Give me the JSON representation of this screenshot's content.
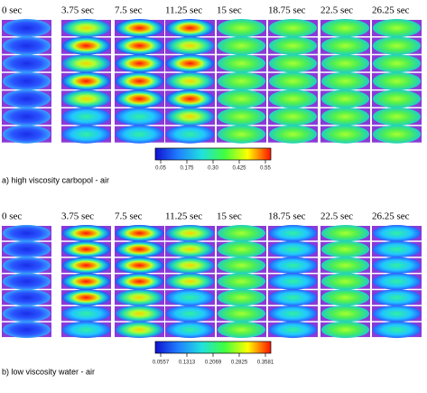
{
  "panels": [
    {
      "time_labels": [
        "0 sec",
        "3.75 sec",
        "7.5 sec",
        "11.25 sec",
        "15 sec",
        "18.75 sec",
        "22.5 sec",
        "26.25 sec"
      ],
      "colorbar_ticks": [
        "0.05",
        "0.175",
        "0.30",
        "0.425",
        "0.55"
      ],
      "caption": "a) high viscosity carbopol - air"
    },
    {
      "time_labels": [
        "0 sec",
        "3.75 sec",
        "7.5 sec",
        "11.25 sec",
        "15 sec",
        "18.75 sec",
        "22.5 sec",
        "26.25 sec"
      ],
      "colorbar_ticks": [
        "0.0557",
        "0.1313",
        "0.2069",
        "0.2825",
        "0.3581"
      ],
      "caption": "b) low viscosity water - air"
    }
  ]
}
